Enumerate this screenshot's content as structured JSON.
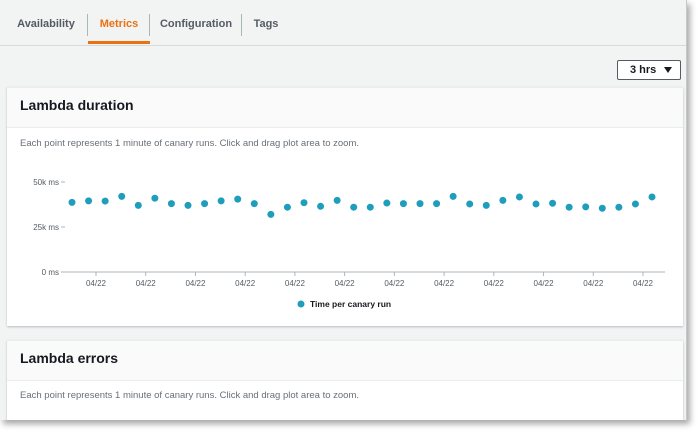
{
  "tabs": [
    {
      "label": "Availability",
      "active": false
    },
    {
      "label": "Metrics",
      "active": true
    },
    {
      "label": "Configuration",
      "active": false
    },
    {
      "label": "Tags",
      "active": false
    }
  ],
  "time_range": {
    "selected": "3 hrs"
  },
  "panels": [
    {
      "title": "Lambda duration",
      "description": "Each point represents 1 minute of canary runs. Click and drag plot area to zoom."
    },
    {
      "title": "Lambda errors",
      "description": "Each point represents 1 minute of canary runs. Click and drag plot area to zoom."
    }
  ],
  "colors": {
    "accent": "#ec7211",
    "series": "#1f9dbd"
  },
  "chart_data": {
    "type": "scatter",
    "title": "Lambda duration",
    "ylabel": "",
    "xlabel": "",
    "y_ticks": [
      "50k ms",
      "25k ms",
      "0 ms"
    ],
    "y_tick_values": [
      50000,
      25000,
      0
    ],
    "ylim": [
      0,
      50000
    ],
    "x_tick_labels": [
      "04/22",
      "04/22",
      "04/22",
      "04/22",
      "04/22",
      "04/22",
      "04/22",
      "04/22",
      "04/22",
      "04/22",
      "04/22",
      "04/22"
    ],
    "grid": false,
    "legend_position": "bottom-center",
    "series": [
      {
        "name": "Time per canary run",
        "values": [
          38700,
          39500,
          39400,
          42000,
          37000,
          41000,
          38000,
          37000,
          38000,
          39500,
          40500,
          38000,
          32000,
          36000,
          38500,
          36500,
          39800,
          36000,
          36000,
          38300,
          38000,
          38000,
          38000,
          42000,
          37800,
          37000,
          39800,
          41700,
          37800,
          38200,
          36000,
          36200,
          35400,
          36000,
          37800,
          41700
        ]
      }
    ]
  }
}
